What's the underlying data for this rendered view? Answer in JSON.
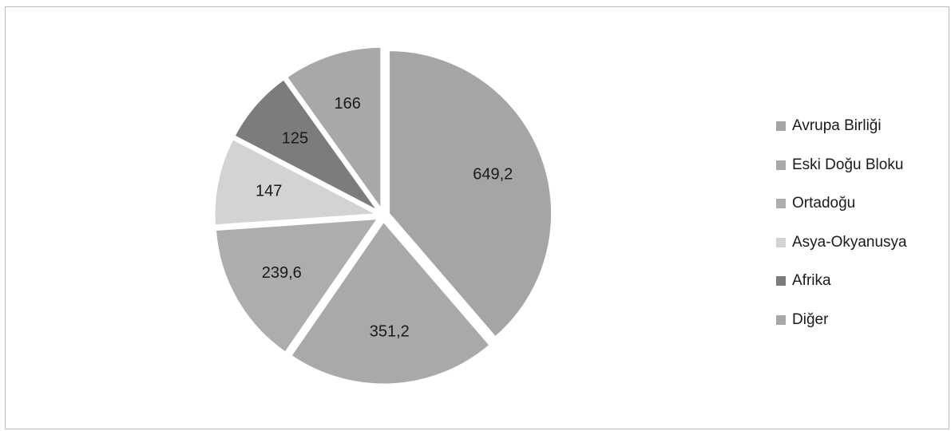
{
  "chart_data": {
    "type": "pie",
    "title": "",
    "categories": [
      "Avrupa Birliği",
      "Eski Doğu Bloku",
      "Ortadoğu",
      "Asya-Okyanusya",
      "Afrika",
      "Diğer"
    ],
    "values": [
      649.2,
      351.2,
      239.6,
      147,
      125,
      166
    ],
    "value_labels": [
      "649,2",
      "351,2",
      "239,6",
      "147",
      "125",
      "166"
    ],
    "colors": [
      "#a5a5a5",
      "#a9a9a9",
      "#adadad",
      "#d3d3d3",
      "#7c7c7c",
      "#a8a8a8"
    ],
    "legend_position": "right",
    "exploded": true
  }
}
